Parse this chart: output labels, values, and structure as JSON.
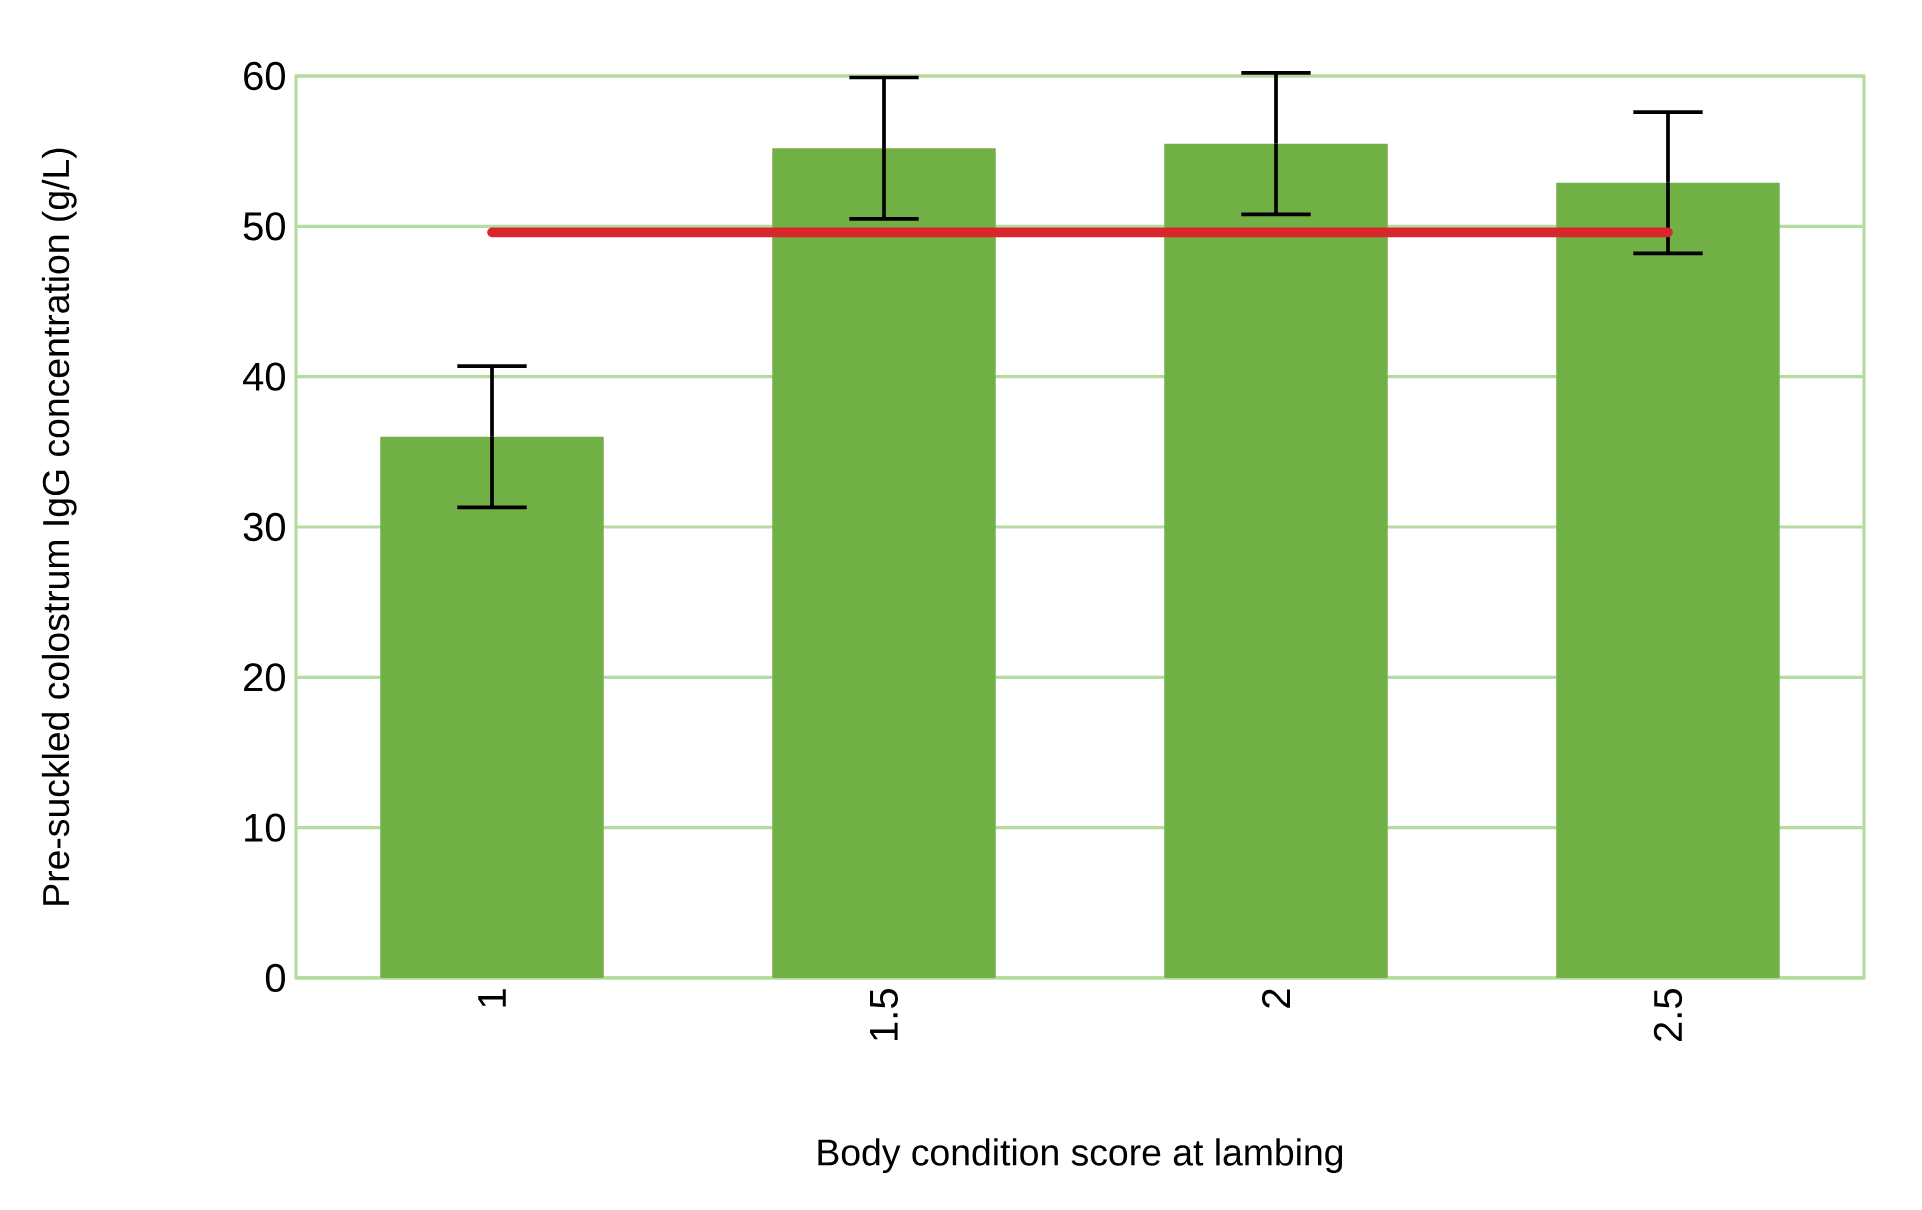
{
  "chart_data": {
    "type": "bar",
    "xlabel": "Body condition score at lambing",
    "ylabel": "Pre-suckled colostrum IgG concentration (g/L)",
    "categories": [
      "1",
      "1.5",
      "2",
      "2.5"
    ],
    "series": [
      {
        "color": "#70b045",
        "values": [
          36.0,
          55.2,
          55.5,
          52.9
        ],
        "errors": [
          4.7,
          4.7,
          4.7,
          4.7
        ]
      },
      {
        "type": "line",
        "color": "#d9262c",
        "values": [
          49.6,
          49.6,
          49.6,
          49.6
        ],
        "marker": "none",
        "line_style": "solid"
      }
    ],
    "ylim": [
      0,
      60
    ],
    "yticks": [
      0,
      10,
      20,
      30,
      40,
      50,
      60
    ],
    "grid": "y"
  }
}
